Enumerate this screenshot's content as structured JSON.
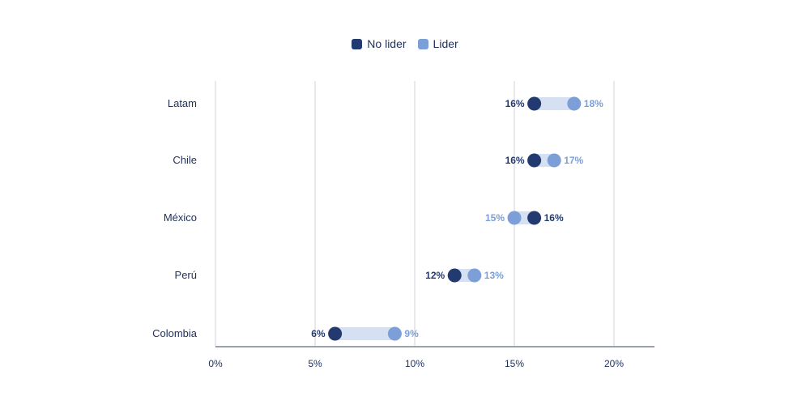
{
  "chart_data": {
    "type": "dumbbell",
    "categories": [
      "Latam",
      "Chile",
      "México",
      "Perú",
      "Colombia"
    ],
    "series": [
      {
        "name": "No lider",
        "color": "#223a70",
        "values": [
          16,
          16,
          16,
          12,
          6
        ]
      },
      {
        "name": "Lider",
        "color": "#7b9fd6",
        "values": [
          18,
          17,
          15,
          13,
          9
        ]
      }
    ],
    "connector_color": "#d5e1f2",
    "x_ticks": [
      "0%",
      "5%",
      "10%",
      "15%",
      "20%"
    ],
    "x_tick_values": [
      0,
      5,
      10,
      15,
      20
    ],
    "xlim": [
      0,
      22
    ],
    "value_suffix": "%",
    "grid": true,
    "legend_position": "top-center"
  }
}
